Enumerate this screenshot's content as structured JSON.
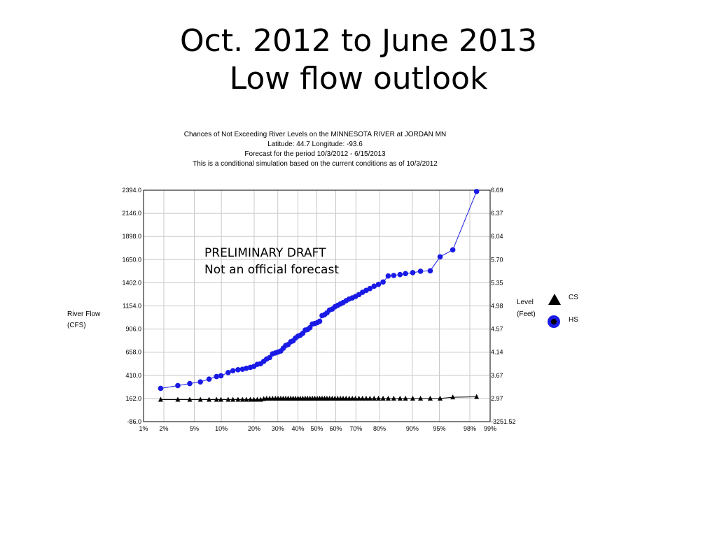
{
  "slide": {
    "title_line1": "Oct. 2012 to June 2013",
    "title_line2": "Low flow outlook"
  },
  "chart_header": {
    "line1": "Chances of Not Exceeding River Levels on the MINNESOTA RIVER at JORDAN MN",
    "line2": "Latitude: 44.7     Longitude:  -93.6",
    "line3": "Forecast for the period 10/3/2012 - 6/15/2013",
    "line4": "This is a conditional simulation based on the current conditions as of 10/3/2012"
  },
  "annotation": {
    "line1": "PRELIMINARY DRAFT",
    "line2": "Not an official forecast"
  },
  "colors": {
    "hs_series": "#1a1ae6",
    "cs_series": "#000000",
    "grid": "#c8c8c8"
  },
  "chart_data": {
    "type": "line",
    "title": "Chances of Not Exceeding River Levels on the MINNESOTA RIVER at JORDAN MN",
    "xlabel": "",
    "ylabel": "River Flow (CFS)",
    "ylabel_line1": "River Flow",
    "ylabel_line2": "(CFS)",
    "y2label_line1": "Level",
    "y2label_line2": "(Feet)",
    "x_axis_scale": "normal probability",
    "xlim": [
      1,
      99
    ],
    "ylim": [
      -86.0,
      2394.0
    ],
    "grid": true,
    "legend_position": "right",
    "x_ticks": [
      "1%",
      "2%",
      "5%",
      "10%",
      "20%",
      "30%",
      "40%",
      "50%",
      "60%",
      "70%",
      "80%",
      "90%",
      "95%",
      "98%",
      "99%"
    ],
    "x_tick_values": [
      1,
      2,
      5,
      10,
      20,
      30,
      40,
      50,
      60,
      70,
      80,
      90,
      95,
      98,
      99
    ],
    "y_ticks": [
      "2394.0",
      "2146.0",
      "1898.0",
      "1650.0",
      "1402.0",
      "1154.0",
      "906.0",
      "658.0",
      "410.0",
      "162.0",
      "-86.0"
    ],
    "y_tick_values": [
      2394,
      2146,
      1898,
      1650,
      1402,
      1154,
      906,
      658,
      410,
      162,
      -86
    ],
    "y2_ticks": [
      "6.69",
      "6.37",
      "6.04",
      "5.70",
      "5.35",
      "4.98",
      "4.57",
      "4.14",
      "3.67",
      "2.97",
      "-3251.52"
    ],
    "series": [
      {
        "name": "HS",
        "marker": "circle",
        "x": [
          1.8,
          3.1,
          4.4,
          5.9,
          7.4,
          8.9,
          9.9,
          11.7,
          13.0,
          14.5,
          15.9,
          17.2,
          18.6,
          19.9,
          21.2,
          22.5,
          23.8,
          25.0,
          26.3,
          27.6,
          28.9,
          30.1,
          31.4,
          32.6,
          33.8,
          35.0,
          36.3,
          37.5,
          38.7,
          40.0,
          41.2,
          42.5,
          43.8,
          45.0,
          46.3,
          47.6,
          48.9,
          50.2,
          51.5,
          52.8,
          54.1,
          55.4,
          56.8,
          58.2,
          59.6,
          61.0,
          62.4,
          63.8,
          65.3,
          66.8,
          68.3,
          69.8,
          71.4,
          73.0,
          74.6,
          76.2,
          77.9,
          79.6,
          81.3,
          83.1,
          84.9,
          86.8,
          88.3,
          90.1,
          91.8,
          93.6,
          95.1,
          96.6,
          98.4
        ],
        "y": [
          270,
          300,
          322,
          340,
          370,
          397,
          405,
          440,
          460,
          470,
          475,
          486,
          495,
          505,
          528,
          535,
          560,
          585,
          600,
          640,
          650,
          660,
          670,
          700,
          730,
          740,
          770,
          780,
          810,
          830,
          840,
          860,
          895,
          900,
          920,
          960,
          965,
          975,
          990,
          1050,
          1060,
          1080,
          1110,
          1120,
          1145,
          1160,
          1175,
          1190,
          1210,
          1228,
          1240,
          1255,
          1275,
          1300,
          1320,
          1340,
          1365,
          1385,
          1410,
          1475,
          1480,
          1490,
          1500,
          1510,
          1525,
          1530,
          1680,
          1755,
          2380
        ]
      },
      {
        "name": "CS",
        "marker": "triangle",
        "x": [
          1.8,
          3.1,
          4.4,
          5.9,
          7.4,
          8.9,
          9.9,
          11.7,
          13.0,
          14.5,
          15.9,
          17.2,
          18.6,
          19.9,
          21.2,
          22.5,
          23.8,
          25.0,
          26.3,
          27.6,
          28.9,
          30.1,
          31.4,
          32.6,
          33.8,
          35.0,
          36.3,
          37.5,
          38.7,
          40.0,
          41.2,
          42.5,
          43.8,
          45.0,
          46.3,
          47.6,
          48.9,
          50.2,
          51.5,
          52.8,
          54.1,
          55.4,
          56.8,
          58.2,
          59.6,
          61.0,
          62.4,
          63.8,
          65.3,
          66.8,
          68.3,
          69.8,
          71.4,
          73.0,
          74.6,
          76.2,
          77.9,
          79.6,
          81.3,
          83.1,
          84.9,
          86.8,
          88.3,
          90.1,
          91.8,
          93.6,
          95.1,
          96.6,
          98.4
        ],
        "y": [
          150,
          150,
          150,
          150,
          150,
          150,
          150,
          150,
          150,
          150,
          150,
          150,
          150,
          150,
          150,
          150,
          158,
          162,
          162,
          162,
          162,
          162,
          162,
          162,
          162,
          162,
          162,
          162,
          162,
          162,
          162,
          162,
          162,
          162,
          162,
          162,
          162,
          162,
          162,
          162,
          162,
          162,
          162,
          162,
          162,
          162,
          162,
          162,
          162,
          162,
          162,
          162,
          162,
          162,
          162,
          162,
          162,
          162,
          162,
          162,
          162,
          162,
          162,
          162,
          162,
          162,
          162,
          175,
          180
        ]
      }
    ]
  }
}
